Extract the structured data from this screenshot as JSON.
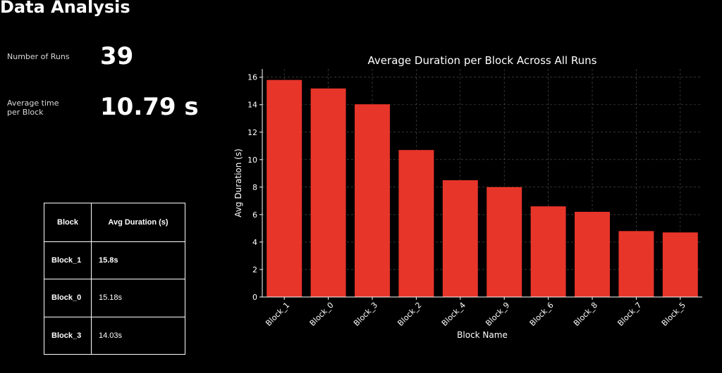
{
  "header": {
    "title": "Data Analysis"
  },
  "metrics": {
    "runs_label": "Number of Runs",
    "runs_value": "39",
    "avg_label_line1": "Average time",
    "avg_label_line2": "per Block",
    "avg_value": "10.79 s"
  },
  "summary_table": {
    "headers": [
      "Block",
      "Avg Duration (s)"
    ],
    "rows": [
      {
        "block": "Block_1",
        "duration": "15.8s"
      },
      {
        "block": "Block_0",
        "duration": "15.18s"
      },
      {
        "block": "Block_3",
        "duration": "14.03s"
      }
    ]
  },
  "colors": {
    "background": "#000000",
    "bar": "#e8352a",
    "text": "#ffffff",
    "grid": "#555555"
  },
  "chart_data": {
    "type": "bar",
    "title": "Average Duration per Block Across All Runs",
    "xlabel": "Block Name",
    "ylabel": "Avg Duration (s)",
    "categories": [
      "Block_1",
      "Block_0",
      "Block_3",
      "Block_2",
      "Block_4",
      "Block_9",
      "Block_6",
      "Block_8",
      "Block_7",
      "Block_5"
    ],
    "values": [
      15.8,
      15.18,
      14.03,
      10.7,
      8.5,
      8.0,
      6.6,
      6.2,
      4.8,
      4.7
    ],
    "ylim": [
      0,
      16.6
    ],
    "yticks": [
      0,
      2,
      4,
      6,
      8,
      10,
      12,
      14,
      16
    ],
    "grid": true,
    "tick_rotation": -45
  }
}
